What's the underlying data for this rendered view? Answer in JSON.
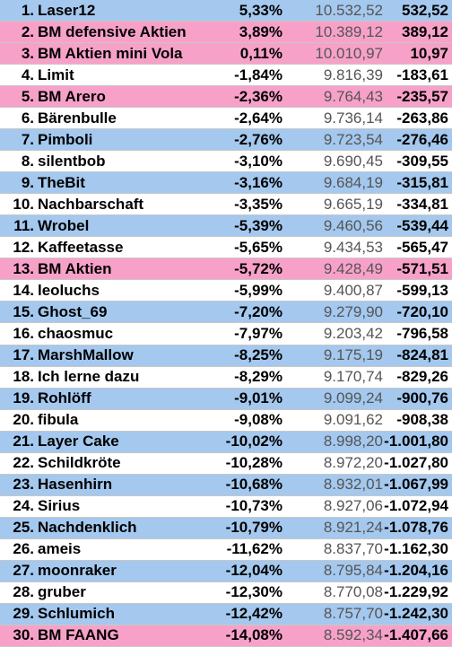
{
  "table": {
    "rows": [
      [
        "1.",
        "Laser12",
        "5,33%",
        "10.532,52",
        "532,52",
        "#a4c8ee"
      ],
      [
        "2.",
        "BM defensive Aktien",
        "3,89%",
        "10.389,12",
        "389,12",
        "#f7a1c9"
      ],
      [
        "3.",
        "BM Aktien mini Vola",
        "0,11%",
        "10.010,97",
        "10,97",
        "#f7a1c9"
      ],
      [
        "4.",
        "Limit",
        "-1,84%",
        "9.816,39",
        "-183,61",
        "#ffffff"
      ],
      [
        "5.",
        "BM Arero",
        "-2,36%",
        "9.764,43",
        "-235,57",
        "#f7a1c9"
      ],
      [
        "6.",
        "Bärenbulle",
        "-2,64%",
        "9.736,14",
        "-263,86",
        "#ffffff"
      ],
      [
        "7.",
        "Pimboli",
        "-2,76%",
        "9.723,54",
        "-276,46",
        "#a4c8ee"
      ],
      [
        "8.",
        "silentbob",
        "-3,10%",
        "9.690,45",
        "-309,55",
        "#ffffff"
      ],
      [
        "9.",
        "TheBit",
        "-3,16%",
        "9.684,19",
        "-315,81",
        "#a4c8ee"
      ],
      [
        "10.",
        "Nachbarschaft",
        "-3,35%",
        "9.665,19",
        "-334,81",
        "#ffffff"
      ],
      [
        "11.",
        "Wrobel",
        "-5,39%",
        "9.460,56",
        "-539,44",
        "#a4c8ee"
      ],
      [
        "12.",
        "Kaffeetasse",
        "-5,65%",
        "9.434,53",
        "-565,47",
        "#ffffff"
      ],
      [
        "13.",
        "BM Aktien",
        "-5,72%",
        "9.428,49",
        "-571,51",
        "#f7a1c9"
      ],
      [
        "14.",
        "leoluchs",
        "-5,99%",
        "9.400,87",
        "-599,13",
        "#ffffff"
      ],
      [
        "15.",
        "Ghost_69",
        "-7,20%",
        "9.279,90",
        "-720,10",
        "#a4c8ee"
      ],
      [
        "16.",
        "chaosmuc",
        "-7,97%",
        "9.203,42",
        "-796,58",
        "#ffffff"
      ],
      [
        "17.",
        "MarshMallow",
        "-8,25%",
        "9.175,19",
        "-824,81",
        "#a4c8ee"
      ],
      [
        "18.",
        "Ich lerne dazu",
        "-8,29%",
        "9.170,74",
        "-829,26",
        "#ffffff"
      ],
      [
        "19.",
        "Rohlöff",
        "-9,01%",
        "9.099,24",
        "-900,76",
        "#a4c8ee"
      ],
      [
        "20.",
        "fibula",
        "-9,08%",
        "9.091,62",
        "-908,38",
        "#ffffff"
      ],
      [
        "21.",
        "Layer Cake",
        "-10,02%",
        "8.998,20",
        "-1.001,80",
        "#a4c8ee"
      ],
      [
        "22.",
        "Schildkröte",
        "-10,28%",
        "8.972,20",
        "-1.027,80",
        "#ffffff"
      ],
      [
        "23.",
        "Hasenhirn",
        "-10,68%",
        "8.932,01",
        "-1.067,99",
        "#a4c8ee"
      ],
      [
        "24.",
        "Sirius",
        "-10,73%",
        "8.927,06",
        "-1.072,94",
        "#ffffff"
      ],
      [
        "25.",
        "Nachdenklich",
        "-10,79%",
        "8.921,24",
        "-1.078,76",
        "#a4c8ee"
      ],
      [
        "26.",
        "ameis",
        "-11,62%",
        "8.837,70",
        "-1.162,30",
        "#ffffff"
      ],
      [
        "27.",
        "moonraker",
        "-12,04%",
        "8.795,84",
        "-1.204,16",
        "#a4c8ee"
      ],
      [
        "28.",
        "gruber",
        "-12,30%",
        "8.770,08",
        "-1.229,92",
        "#ffffff"
      ],
      [
        "29.",
        "Schlumich",
        "-12,42%",
        "8.757,70",
        "-1.242,30",
        "#a4c8ee"
      ],
      [
        "30.",
        "BM FAANG",
        "-14,08%",
        "8.592,34",
        "-1.407,66",
        "#f7a1c9"
      ]
    ]
  }
}
